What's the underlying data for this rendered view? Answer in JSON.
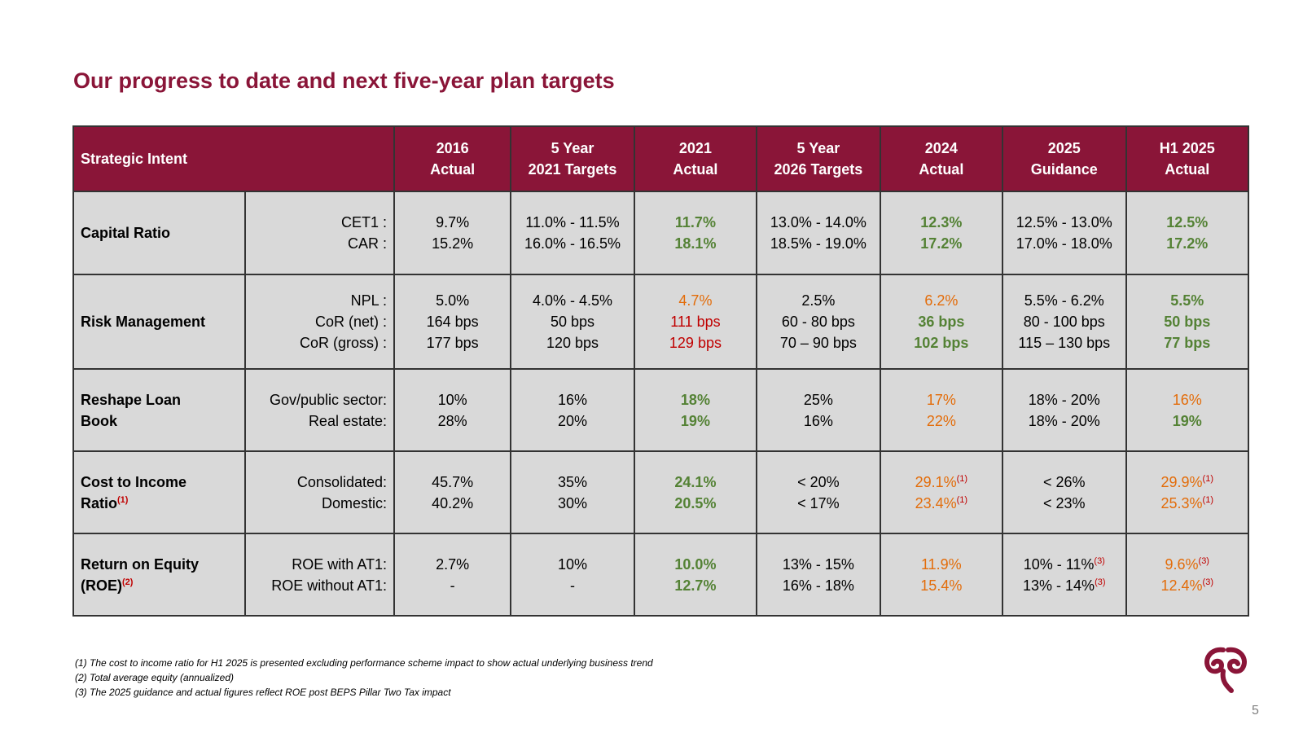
{
  "title": "Our progress to date and next five-year plan targets",
  "colors": {
    "accent": "#8a1538",
    "green": "#548235",
    "orange": "#e36c09",
    "red": "#c00000",
    "cell_bg": "#d9d9d9"
  },
  "header": {
    "intent": "Strategic Intent",
    "columns": [
      {
        "line1": "2016",
        "line2": "Actual"
      },
      {
        "line1": "5 Year",
        "line2": "2021 Targets"
      },
      {
        "line1": "2021",
        "line2": "Actual"
      },
      {
        "line1": "5 Year",
        "line2": "2026 Targets"
      },
      {
        "line1": "2024",
        "line2": "Actual"
      },
      {
        "line1": "2025",
        "line2": "Guidance"
      },
      {
        "line1": "H1 2025",
        "line2": "Actual"
      }
    ]
  },
  "rows": [
    {
      "label": [
        "Capital Ratio"
      ],
      "label_fn": "",
      "metrics": [
        "CET1 :",
        "CAR :"
      ],
      "cols": [
        [
          {
            "t": "9.7%",
            "c": ""
          },
          {
            "t": "15.2%",
            "c": ""
          }
        ],
        [
          {
            "t": "11.0% - 11.5%",
            "c": ""
          },
          {
            "t": "16.0% - 16.5%",
            "c": ""
          }
        ],
        [
          {
            "t": "11.7%",
            "c": "green"
          },
          {
            "t": "18.1%",
            "c": "green"
          }
        ],
        [
          {
            "t": "13.0% - 14.0%",
            "c": ""
          },
          {
            "t": "18.5% - 19.0%",
            "c": ""
          }
        ],
        [
          {
            "t": "12.3%",
            "c": "green"
          },
          {
            "t": "17.2%",
            "c": "green"
          }
        ],
        [
          {
            "t": "12.5% - 13.0%",
            "c": ""
          },
          {
            "t": "17.0% - 18.0%",
            "c": ""
          }
        ],
        [
          {
            "t": "12.5%",
            "c": "green"
          },
          {
            "t": "17.2%",
            "c": "green"
          }
        ]
      ]
    },
    {
      "label": [
        "Risk Management"
      ],
      "label_fn": "",
      "metrics": [
        "NPL :",
        "CoR (net) :",
        "CoR (gross) :"
      ],
      "cols": [
        [
          {
            "t": "5.0%",
            "c": ""
          },
          {
            "t": "164 bps",
            "c": ""
          },
          {
            "t": "177 bps",
            "c": ""
          }
        ],
        [
          {
            "t": "4.0% - 4.5%",
            "c": ""
          },
          {
            "t": "50 bps",
            "c": ""
          },
          {
            "t": "120 bps",
            "c": ""
          }
        ],
        [
          {
            "t": "4.7%",
            "c": "orange"
          },
          {
            "t": "111 bps",
            "c": "red"
          },
          {
            "t": "129 bps",
            "c": "red"
          }
        ],
        [
          {
            "t": "2.5%",
            "c": ""
          },
          {
            "t": "60 - 80 bps",
            "c": ""
          },
          {
            "t": "70 – 90 bps",
            "c": ""
          }
        ],
        [
          {
            "t": "6.2%",
            "c": "orange"
          },
          {
            "t": "36 bps",
            "c": "green"
          },
          {
            "t": "102 bps",
            "c": "green"
          }
        ],
        [
          {
            "t": "5.5% - 6.2%",
            "c": ""
          },
          {
            "t": "80 - 100 bps",
            "c": ""
          },
          {
            "t": "115 – 130 bps",
            "c": ""
          }
        ],
        [
          {
            "t": "5.5%",
            "c": "green"
          },
          {
            "t": "50 bps",
            "c": "green"
          },
          {
            "t": "77 bps",
            "c": "green"
          }
        ]
      ]
    },
    {
      "label": [
        "Reshape Loan",
        "Book"
      ],
      "label_fn": "",
      "metrics": [
        "Gov/public sector:",
        "Real estate:"
      ],
      "cols": [
        [
          {
            "t": "10%",
            "c": ""
          },
          {
            "t": "28%",
            "c": ""
          }
        ],
        [
          {
            "t": "16%",
            "c": ""
          },
          {
            "t": "20%",
            "c": ""
          }
        ],
        [
          {
            "t": "18%",
            "c": "green"
          },
          {
            "t": "19%",
            "c": "green"
          }
        ],
        [
          {
            "t": "25%",
            "c": ""
          },
          {
            "t": "16%",
            "c": ""
          }
        ],
        [
          {
            "t": "17%",
            "c": "orange"
          },
          {
            "t": "22%",
            "c": "orange"
          }
        ],
        [
          {
            "t": "18% - 20%",
            "c": ""
          },
          {
            "t": "18% - 20%",
            "c": ""
          }
        ],
        [
          {
            "t": "16%",
            "c": "orange"
          },
          {
            "t": "19%",
            "c": "green"
          }
        ]
      ]
    },
    {
      "label": [
        "Cost to Income",
        "Ratio"
      ],
      "label_fn": "(1)",
      "metrics": [
        "Consolidated:",
        "Domestic:"
      ],
      "cols": [
        [
          {
            "t": "45.7%",
            "c": ""
          },
          {
            "t": "40.2%",
            "c": ""
          }
        ],
        [
          {
            "t": "35%",
            "c": ""
          },
          {
            "t": "30%",
            "c": ""
          }
        ],
        [
          {
            "t": "24.1%",
            "c": "green"
          },
          {
            "t": "20.5%",
            "c": "green"
          }
        ],
        [
          {
            "t": "< 20%",
            "c": ""
          },
          {
            "t": "< 17%",
            "c": ""
          }
        ],
        [
          {
            "t": "29.1%",
            "c": "orange",
            "fn": "(1)"
          },
          {
            "t": "23.4%",
            "c": "orange",
            "fn": "(1)"
          }
        ],
        [
          {
            "t": "< 26%",
            "c": ""
          },
          {
            "t": "< 23%",
            "c": ""
          }
        ],
        [
          {
            "t": "29.9%",
            "c": "orange",
            "fn": "(1)"
          },
          {
            "t": "25.3%",
            "c": "orange",
            "fn": "(1)"
          }
        ]
      ]
    },
    {
      "label": [
        "Return on Equity",
        "(ROE)"
      ],
      "label_fn": "(2)",
      "metrics": [
        "ROE with AT1:",
        "ROE without AT1:"
      ],
      "cols": [
        [
          {
            "t": "2.7%",
            "c": ""
          },
          {
            "t": "-",
            "c": ""
          }
        ],
        [
          {
            "t": "10%",
            "c": ""
          },
          {
            "t": "-",
            "c": ""
          }
        ],
        [
          {
            "t": "10.0%",
            "c": "green"
          },
          {
            "t": "12.7%",
            "c": "green"
          }
        ],
        [
          {
            "t": "13% - 15%",
            "c": ""
          },
          {
            "t": "16% - 18%",
            "c": ""
          }
        ],
        [
          {
            "t": "11.9%",
            "c": "orange"
          },
          {
            "t": "15.4%",
            "c": "orange"
          }
        ],
        [
          {
            "t": "10% - 11%",
            "c": "",
            "fn": "(3)"
          },
          {
            "t": "13% - 14%",
            "c": "",
            "fn": "(3)"
          }
        ],
        [
          {
            "t": "9.6%",
            "c": "orange",
            "fn": "(3)"
          },
          {
            "t": "12.4%",
            "c": "orange",
            "fn": "(3)"
          }
        ]
      ]
    }
  ],
  "footnotes": [
    "(1) The cost to income ratio for H1 2025 is presented excluding performance scheme impact to show actual underlying business trend",
    "(2) Total average equity (annualized)",
    "(3) The 2025 guidance and actual figures reflect ROE post BEPS Pillar Two Tax impact"
  ],
  "page_number": "5"
}
